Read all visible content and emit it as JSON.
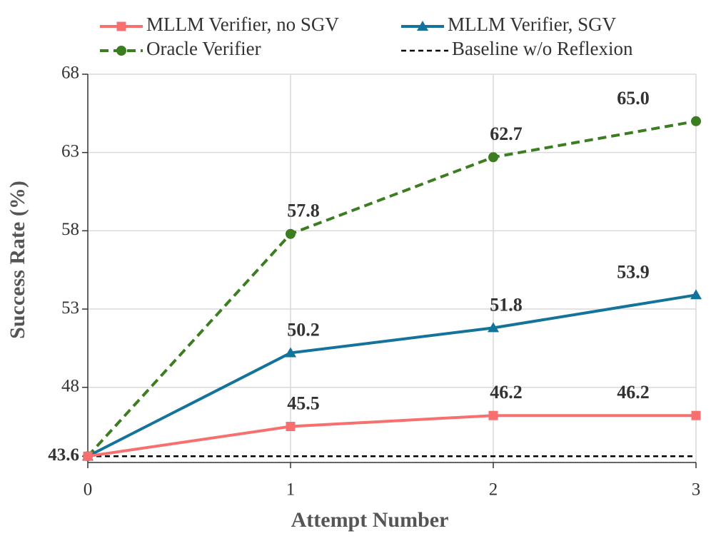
{
  "chart_data": {
    "type": "line",
    "x_label": "Attempt Number",
    "y_label": "Success Rate (%)",
    "x": [
      0,
      1,
      2,
      3
    ],
    "xlim": [
      0,
      3
    ],
    "xticks": [
      0,
      1,
      2,
      3
    ],
    "ylim": [
      43.2,
      68
    ],
    "yticks": [
      43.6,
      48,
      53,
      58,
      63,
      68
    ],
    "grid": true,
    "legend": "top",
    "series": [
      {
        "name": "MLLM Verifier, no SGV",
        "color": "#f7706f",
        "marker": "square",
        "dashed": false,
        "values": [
          43.6,
          45.5,
          46.2,
          46.2
        ],
        "value_labels": [
          null,
          "45.5",
          "46.2",
          "46.2"
        ]
      },
      {
        "name": "MLLM Verifier, SGV",
        "color": "#13739a",
        "marker": "triangle",
        "dashed": false,
        "values": [
          43.6,
          50.2,
          51.8,
          53.9
        ],
        "value_labels": [
          null,
          "50.2",
          "51.8",
          "53.9"
        ]
      },
      {
        "name": "Oracle Verifier",
        "color": "#3c7d22",
        "marker": "circle",
        "dashed": true,
        "values": [
          43.6,
          57.8,
          62.7,
          65.0
        ],
        "value_labels": [
          null,
          "57.8",
          "62.7",
          "65.0"
        ]
      },
      {
        "name": "Baseline w/o Reflexion",
        "color": "#000000",
        "marker": "none",
        "dashed": true,
        "values": [
          43.6,
          43.6,
          43.6,
          43.6
        ]
      }
    ]
  }
}
